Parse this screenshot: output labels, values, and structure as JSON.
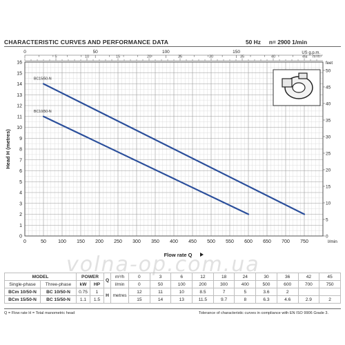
{
  "header": {
    "title": "CHARACTERISTIC CURVES AND PERFORMANCE DATA",
    "frequency": "50 Hz",
    "speed": "n= 2900  1/min"
  },
  "chart_data": {
    "type": "line",
    "ylabel": "Head H (metres)",
    "xlabel": "Flow rate  Q",
    "x_unit": "l/min",
    "ylim": [
      0,
      16
    ],
    "xlim": [
      0,
      800
    ],
    "y_ticks": [
      0,
      1,
      2,
      3,
      4,
      5,
      6,
      7,
      8,
      9,
      10,
      11,
      12,
      13,
      14,
      15,
      16
    ],
    "x_ticks": [
      0,
      50,
      100,
      150,
      200,
      250,
      300,
      350,
      400,
      450,
      500,
      550,
      600,
      650,
      700,
      750
    ],
    "top_axis_unit": "US g.p.m.",
    "top_axis_ticks": [
      0,
      50,
      100,
      150
    ],
    "top_axis2_unit": "m³/h",
    "top_axis2_ticks": [
      0,
      5,
      10,
      15,
      20,
      25,
      30,
      35,
      40,
      45
    ],
    "right_axis_unit": "feet",
    "right_axis_ticks": [
      0,
      5,
      10,
      15,
      20,
      25,
      30,
      35,
      40,
      45,
      50
    ],
    "series": [
      {
        "name": "BC15/50-N",
        "x": [
          50,
          750
        ],
        "y": [
          14,
          2
        ]
      },
      {
        "name": "BC10/50-N",
        "x": [
          50,
          600
        ],
        "y": [
          11,
          2
        ]
      }
    ],
    "grid": true,
    "line_color": "#2b4f9b"
  },
  "table": {
    "model_header": "MODEL",
    "power_header": "POWER",
    "single_phase": "Single-phase",
    "three_phase": "Three-phase",
    "kw": "kW",
    "hp": "HP",
    "q": "Q",
    "h": "H",
    "unit_m3h": "m³/h",
    "unit_lmin": "l/min",
    "unit_metres": "metres",
    "q_m3h": [
      "0",
      "3",
      "6",
      "12",
      "18",
      "24",
      "30",
      "36",
      "42",
      "45"
    ],
    "q_lmin": [
      "0",
      "50",
      "100",
      "200",
      "300",
      "400",
      "500",
      "600",
      "700",
      "750"
    ],
    "rows": [
      {
        "single": "BCm 10/50-N",
        "three": "BC 10/50-N",
        "kw": "0.75",
        "hp": "1",
        "h": [
          "12",
          "11",
          "10",
          "8.5",
          "7",
          "5",
          "3.6",
          "2",
          "",
          ""
        ]
      },
      {
        "single": "BCm 15/50-N",
        "three": "BC 15/50-N",
        "kw": "1.1",
        "hp": "1.5",
        "h": [
          "15",
          "14",
          "13",
          "11.5",
          "9.7",
          "8",
          "6.3",
          "4.6",
          "2.9",
          "2"
        ]
      }
    ]
  },
  "footer": {
    "legend": "Q = Flow rate  H = Total manometric head",
    "tolerance": "Tolerance of characteristic curves in compliance with EN ISO 9906 Grade 3."
  },
  "watermark": "volna-op.com.ua"
}
